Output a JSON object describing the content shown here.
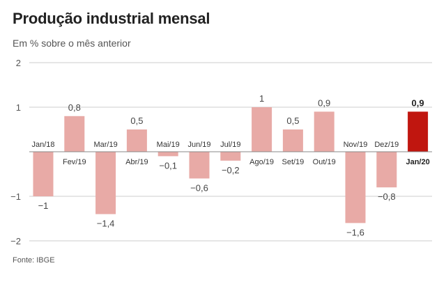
{
  "title": "Produção industrial mensal",
  "subtitle": "Em % sobre o mês anterior",
  "source": "Fonte: IBGE",
  "colors": {
    "bar": "#e8aaa6",
    "highlight": "#c0160f",
    "grid": "#cccccc",
    "baseline": "#888888"
  },
  "chart_data": {
    "type": "bar",
    "categories": [
      "Jan/18",
      "Fev/19",
      "Mar/19",
      "Abr/19",
      "Mai/19",
      "Jun/19",
      "Jul/19",
      "Ago/19",
      "Set/19",
      "Out/19",
      "Nov/19",
      "Dez/19",
      "Jan/20"
    ],
    "values": [
      -1,
      0.8,
      -1.4,
      0.5,
      -0.1,
      -0.6,
      -0.2,
      1,
      0.5,
      0.9,
      -1.6,
      -0.8,
      0.9
    ],
    "value_labels": [
      "−1",
      "0,8",
      "−1,4",
      "0,5",
      "−0,1",
      "−0,6",
      "−0,2",
      "1",
      "0,5",
      "0,9",
      "−1,6",
      "−0,8",
      "0,9"
    ],
    "highlight_index": 12,
    "yticks": [
      2,
      1,
      -1,
      -2
    ],
    "ytick_labels": [
      "2",
      "1",
      "−1",
      "−2"
    ],
    "ylim": [
      -2,
      2
    ],
    "grid": true,
    "title": "Produção industrial mensal",
    "xlabel": "",
    "ylabel": ""
  }
}
